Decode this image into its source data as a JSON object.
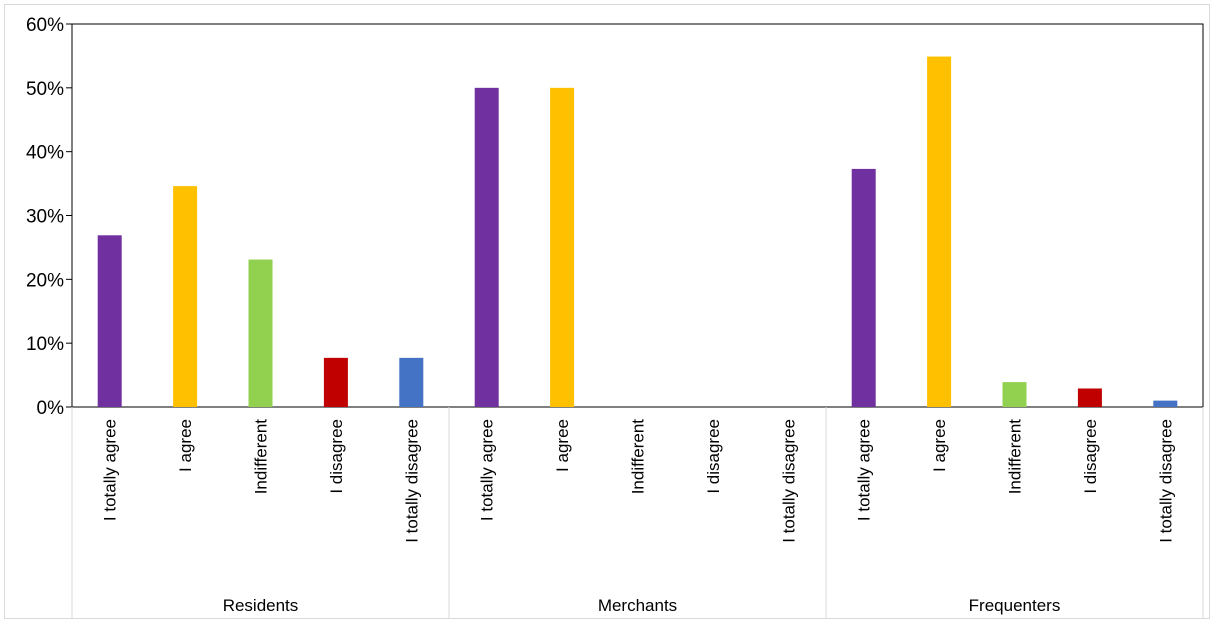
{
  "chart_data": {
    "type": "bar",
    "title": "",
    "xlabel": "",
    "ylabel": "",
    "ylim": [
      0,
      60
    ],
    "y_ticks": [
      "0%",
      "10%",
      "20%",
      "30%",
      "40%",
      "50%",
      "60%"
    ],
    "y_tick_values": [
      0,
      10,
      20,
      30,
      40,
      50,
      60
    ],
    "grid": false,
    "legend": "none",
    "categories": [
      "I totally agree",
      "I agree",
      "Indifferent",
      "I disagree",
      "I totally disagree"
    ],
    "category_colors": [
      "#7030a0",
      "#ffc000",
      "#92d050",
      "#c00000",
      "#4472c4"
    ],
    "groups": [
      {
        "name": "Residents",
        "values": [
          26.9,
          34.6,
          23.1,
          7.7,
          7.7
        ]
      },
      {
        "name": "Merchants",
        "values": [
          50.0,
          50.0,
          0,
          0,
          0
        ]
      },
      {
        "name": "Frequenters",
        "values": [
          37.3,
          54.9,
          3.9,
          2.9,
          1.0
        ]
      }
    ]
  }
}
